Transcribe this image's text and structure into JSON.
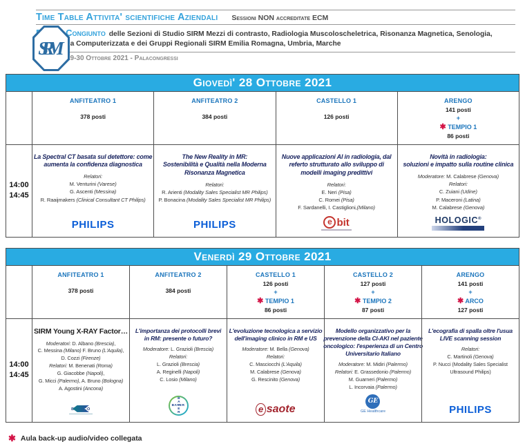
{
  "symbols": {
    "asterisk": "✱",
    "plus": "+"
  },
  "colors": {
    "banner_cyan": "#29ABE2",
    "room_blue": "#1B75BC",
    "asterisk_red": "#D31245",
    "title_navy": "#1A2560",
    "philips_blue": "#0B5ED7",
    "ebit_red": "#C4332C",
    "hologic_navy": "#1D3865",
    "esaote_red": "#A3252E",
    "ge_blue": "#2F6FBA"
  },
  "header": {
    "logo_text": "SIRM",
    "title": "Time Table Attivita' scientifiche Aziendali",
    "subtitle": "Sessioni NON accreditate ECM",
    "event_label": "Evento Congiunto",
    "event_desc_line1": "delle Sezioni di Studio SIRM Mezzi di contrasto, Radiologia Muscoloscheletrica, Risonanza Magnetica, Senologia,",
    "event_desc_line2": "Tomografia Computerizzata e dei Gruppi Regionali SIRM Emilia Romagna, Umbria, Marche",
    "location": "Rimini, 28-29-30 Ottobre 2021 - Palacongressi"
  },
  "days": [
    {
      "title": "Giovedì' 28 Ottobre 2021",
      "time_start": "14:00",
      "time_end": "14:45",
      "rooms": [
        {
          "name": "ANFITEATRO 1",
          "posti": "378 posti"
        },
        {
          "name": "ANFITEATRO 2",
          "posti": "384 posti"
        },
        {
          "name": "CASTELLO 1",
          "posti": "126 posti"
        },
        {
          "name": "ARENGO",
          "posti": "141 posti",
          "backup_name": "TEMPIO 1",
          "backup_posti": "86 posti"
        }
      ],
      "sessions": [
        {
          "title_lines": [
            "La Spectral CT basata sul detettore: come",
            "aumenta la confidenza diagnostica"
          ],
          "speakers": [
            "Relatori:",
            "M. Venturini (Varese)",
            "G. Ascenti (Messina)",
            "R. Raaijmakers (Clinical Consultant CT Philips)"
          ],
          "sponsor": {
            "id": "philips",
            "label": "PHILIPS"
          }
        },
        {
          "title_lines": [
            "The New Reality in MR:",
            "Sostenibilità e Qualità nella Moderna",
            "Risonanza Magnetica"
          ],
          "speakers": [
            "Relatori:",
            "R. Arienti (Modality Sales Specialist MR Philips)",
            "P. Bonacina (Modality Sales Specialist MR Philips)"
          ],
          "sponsor": {
            "id": "philips",
            "label": "PHILIPS"
          }
        },
        {
          "title_lines": [
            "Nuove applicazioni AI in radiologia, dal",
            "referto strutturato allo sviluppo di",
            "modelli imaging predittivi"
          ],
          "speakers": [
            "Relatori:",
            "E. Neri (Pisa)",
            "C. Romei (Pisa)",
            "F. Sardanelli, I. Castiglioni,(Milano)"
          ],
          "sponsor": {
            "id": "ebit",
            "label": "ebit"
          }
        },
        {
          "title_lines": [
            "Novità in radiologia:",
            "soluzioni e impatto sulla routine clinica"
          ],
          "speakers": [
            "Moderatore: M. Calabrese (Genova)",
            "Relatori:",
            "C. Zuiani (Udine)",
            "P. Maceroni (Latina)",
            "M. Calabrese (Genova)"
          ],
          "sponsor": {
            "id": "hologic",
            "label": "HOLOGIC"
          }
        }
      ]
    },
    {
      "title": "Venerdì 29 Ottobre 2021",
      "time_start": "14:00",
      "time_end": "14:45",
      "rooms": [
        {
          "name": "ANFITEATRO 1",
          "posti": "378 posti"
        },
        {
          "name": "ANFITEATRO 2",
          "posti": "384 posti"
        },
        {
          "name": "CASTELLO 1",
          "posti": "126 posti",
          "backup_name": "TEMPIO 1",
          "backup_posti": "86 posti"
        },
        {
          "name": "CASTELLO 2",
          "posti": "127 posti",
          "backup_name": "TEMPIO 2",
          "backup_posti": "87 posti"
        },
        {
          "name": "ARENGO",
          "posti": "141 posti",
          "backup_name": "ARCO",
          "backup_posti": "127 posti"
        }
      ],
      "sessions": [
        {
          "title_lines": [
            "SIRM Young X-RAY Factor…"
          ],
          "title_upright": true,
          "speakers": [
            "Moderatori: D. Albano (Brescia),",
            "C. Messina (Milano) F. Bruno (L'Aquila),",
            "D. Cozzi (Firenze)",
            "Relatori: M. Benenati (Roma)",
            "G. Giacobbe (Napoli),",
            "G. Micci (Palermo), A. Bruno (Bologna)",
            "A. Agostini (Ancona)"
          ],
          "sponsor": {
            "id": "bracco",
            "label": "BRACCO"
          }
        },
        {
          "title_lines": [
            "L'importanza dei protocolli brevi",
            "in RM: presente o futuro?"
          ],
          "speakers": [
            "Moderatore: L. Grazioli (Brescia)",
            "Relatori:",
            "L. Grazioli (Brescia)",
            "A. Reginelli (Napoli)",
            "C. Losio (Milano)"
          ],
          "sponsor": {
            "id": "bayer",
            "label": "BAYER"
          }
        },
        {
          "title_lines": [
            "L'evoluzione tecnologica a servizio",
            "dell'imaging clinico in RM e US"
          ],
          "speakers": [
            "Moderatore: M. Bella (Genova)",
            "Relatori:",
            "C. Masciocchi (L'Aquila)",
            "M. Calabrese (Genova)",
            "G. Rescinito (Genova)"
          ],
          "sponsor": {
            "id": "esaote",
            "label": "esaote"
          }
        },
        {
          "title_lines": [
            "Modello organizzativo per la",
            "prevenzione della CI-AKI nel paziente",
            "oncologico: l'esperienza di un Centro",
            "Universitario Italiano"
          ],
          "speakers": [
            "Moderatore: M. Midiri (Palermo)",
            "Relatori: E. Grassedonio (Palermo)",
            "M. Guarneri (Palermo)",
            "L. Incorvaia (Palermo)"
          ],
          "sponsor": {
            "id": "ge-healthcare",
            "label": "GE",
            "sub": "GE Healthcare"
          }
        },
        {
          "title_lines": [
            "L'ecografia di spalla oltre l'usua",
            "LIVE scanning session"
          ],
          "speakers": [
            "Relatori:",
            "C. Martinoli (Genova)",
            "P. Nucci (Modality Sales Specialist",
            "Ultrasound Philips)"
          ],
          "sponsor": {
            "id": "philips",
            "label": "PHILIPS"
          }
        }
      ]
    }
  ],
  "footer": {
    "asterisk": "✱",
    "text": "Aula back-up audio/video collegata"
  }
}
